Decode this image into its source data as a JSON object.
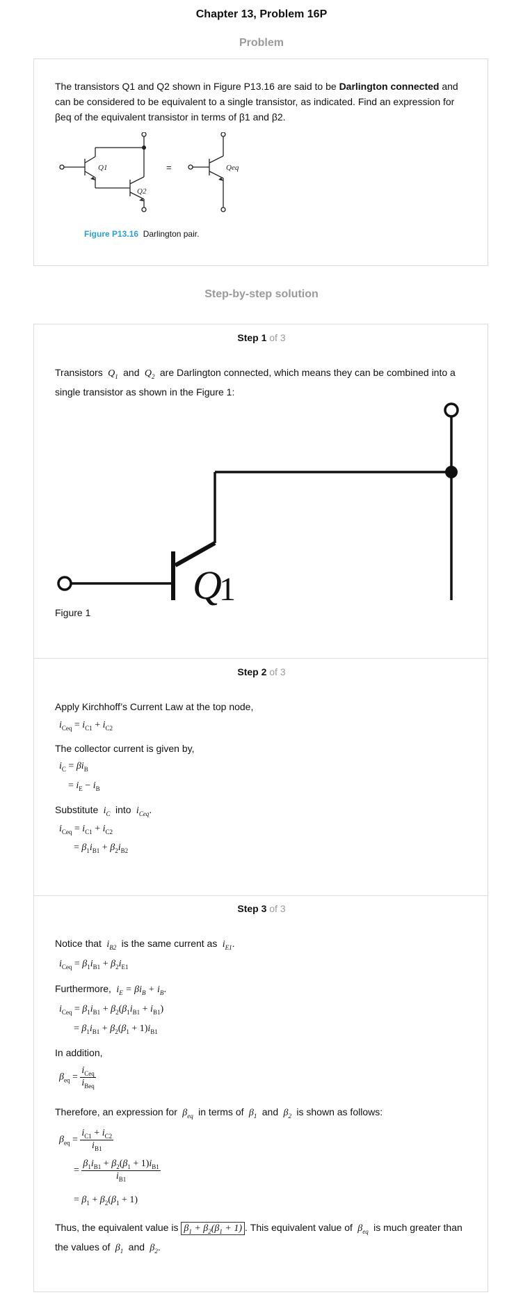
{
  "page": {
    "title": "Chapter 13, Problem 16P",
    "problem_heading": "Problem",
    "solution_heading": "Step-by-step solution"
  },
  "problem": {
    "text_before": "The transistors Q1 and Q2 shown in Figure P13.16 are said to be ",
    "text_bold": "Darlington connected",
    "text_after": " and can be considered to be equivalent to a single transistor, as indicated. Find an expression for βeq of the equivalent transistor in terms of β1 and β2.",
    "figure_label": "Figure P13.16",
    "figure_caption": "Darlington pair.",
    "fig_q1": "Q1",
    "fig_q2": "Q2",
    "fig_qeq": "Qeq",
    "fig_equals": "="
  },
  "step1": {
    "label": "Step 1",
    "of": "of 3",
    "text_a": "Transistors",
    "text_b": "and",
    "text_c": "are Darlington connected, which means they can be combined into a single transistor as shown in the Figure 1:",
    "figure_caption": "Figure 1",
    "fig_q": "Q",
    "fig_sub": "1"
  },
  "step2": {
    "label": "Step 2",
    "of": "of 3",
    "t1": "Apply Kirchhoff’s Current Law at the top node,",
    "t2": "The collector current is given by,",
    "t3a": "Substitute",
    "t3b": "into"
  },
  "step3": {
    "label": "Step 3",
    "of": "of 3",
    "t1a": "Notice that",
    "t1b": "is the same current as",
    "t2": "Furthermore,",
    "t3": "In addition,",
    "t4a": "Therefore, an expression for",
    "t4b": "in terms of",
    "t4c": "and",
    "t4d": "is shown as follows:",
    "t5a": "Thus, the equivalent value is",
    "t5b": ". This equivalent value of",
    "t5c": "is much greater than the values of",
    "t5d": "and"
  },
  "colors": {
    "figure_label": "#2a9fd6",
    "muted": "#9a9a9a",
    "border": "#dcdcdc"
  }
}
